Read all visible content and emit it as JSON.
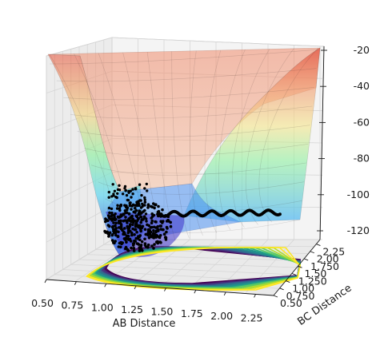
{
  "chart_data": {
    "type": "surface3d",
    "xlabel": "AB Distance",
    "ylabel": "BC Distance",
    "zlabel": "",
    "x_ticks": [
      "0.50",
      "0.75",
      "1.00",
      "1.25",
      "1.50",
      "1.75",
      "2.00",
      "2.25"
    ],
    "y_ticks": [
      "0.50",
      "0.750",
      "1.00",
      "1.250",
      "1.50",
      "1.750",
      "2.00",
      "2.25"
    ],
    "z_ticks": [
      "-20",
      "-40",
      "-60",
      "-80",
      "-100",
      "-120"
    ],
    "xlim": [
      0.5,
      2.4
    ],
    "ylim": [
      0.5,
      2.4
    ],
    "zlim": [
      -135,
      -20
    ],
    "surface_colormap": "jet",
    "contour_colormap": "viridis",
    "grid": true,
    "trajectory": "scatter of black points along the reaction path"
  },
  "colors": {
    "trajectory": "#000000",
    "pane": "#f2f2f2",
    "grid": "#d9d9d9"
  }
}
